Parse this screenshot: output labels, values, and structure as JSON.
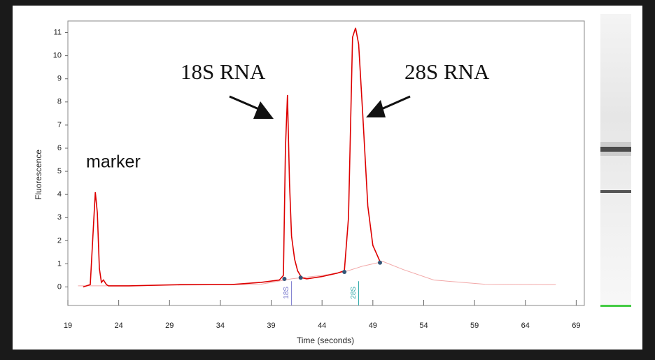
{
  "chart_data": {
    "type": "line",
    "xlabel": "Time (seconds)",
    "ylabel": "Fluorescence",
    "xlim": [
      19,
      69.8
    ],
    "ylim": [
      -0.8,
      11.5
    ],
    "xticks": [
      19,
      24,
      29,
      34,
      39,
      44,
      49,
      54,
      59,
      64,
      69
    ],
    "yticks": [
      0,
      1,
      2,
      3,
      4,
      5,
      6,
      7,
      8,
      9,
      10,
      11
    ],
    "annotations": [
      "marker",
      "18S RNA",
      "28S RNA"
    ],
    "peaks": [
      {
        "label": "18S",
        "x": 41,
        "color": "#7777cc"
      },
      {
        "label": "28S",
        "x": 47.6,
        "color": "#33aaaa"
      }
    ],
    "series": [
      {
        "color": "#f2a8a8",
        "x": [
          20,
          25,
          30,
          35,
          38,
          41,
          44,
          46.2,
          48,
          50,
          52,
          55,
          60,
          67
        ],
        "values": [
          0.05,
          0.05,
          0.08,
          0.1,
          0.12,
          0.35,
          0.5,
          0.65,
          0.9,
          1.1,
          0.75,
          0.3,
          0.12,
          0.1
        ]
      },
      {
        "color": "#dd0000",
        "x": [
          20.5,
          21.2,
          21.5,
          21.7,
          21.9,
          22.1,
          22.3,
          22.5,
          22.8,
          23,
          25,
          30,
          35,
          38,
          39.8,
          40.2,
          40.4,
          40.6,
          40.8,
          41.0,
          41.3,
          41.6,
          42.0,
          42.5,
          44,
          45.5,
          46.2,
          46.6,
          47.0,
          47.3,
          47.6,
          48.0,
          48.5,
          49.0,
          49.7
        ],
        "values": [
          0,
          0.1,
          2.5,
          4.1,
          3.2,
          0.8,
          0.2,
          0.3,
          0.1,
          0.05,
          0.05,
          0.1,
          0.1,
          0.2,
          0.3,
          0.5,
          6,
          8.3,
          4.5,
          2.2,
          1.2,
          0.7,
          0.4,
          0.35,
          0.45,
          0.6,
          0.7,
          3,
          10.8,
          11.2,
          10.5,
          7.5,
          3.5,
          1.8,
          1.1
        ]
      }
    ],
    "points": {
      "color": "#335577",
      "x": [
        40.3,
        41.9,
        46.2,
        49.7
      ],
      "values": [
        0.35,
        0.4,
        0.65,
        1.05
      ]
    }
  }
}
